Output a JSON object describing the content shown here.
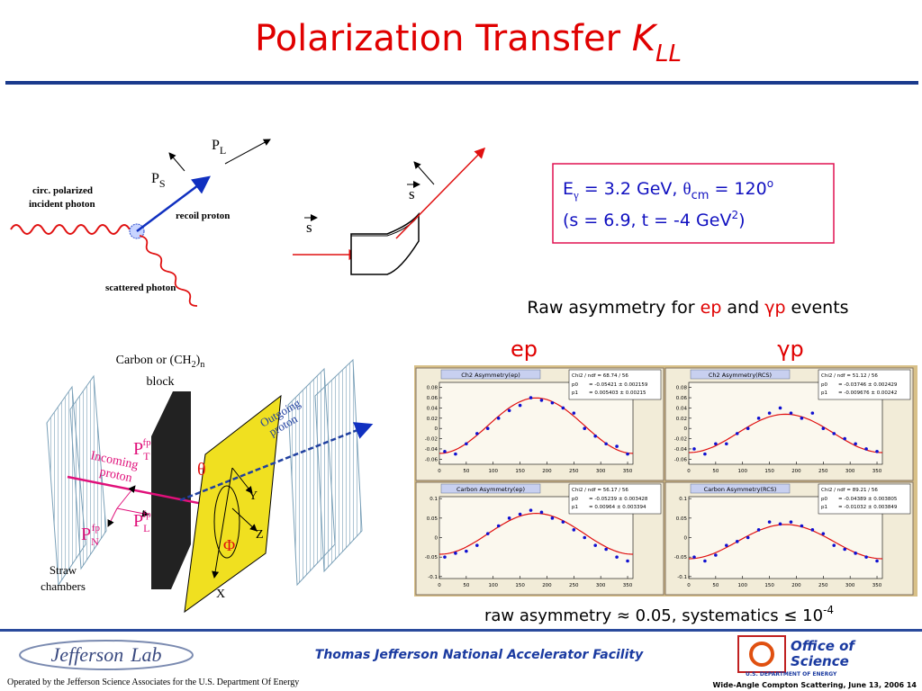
{
  "title": {
    "main": "Polarization Transfer ",
    "symbol": "K",
    "subscript": "LL"
  },
  "compton_diagram": {
    "incident": [
      "circ. polarized",
      "incident photon"
    ],
    "recoil": "recoil proton",
    "scattered": "scattered photon",
    "ps": {
      "symbol": "P",
      "subscript": "S"
    },
    "pl": {
      "symbol": "P",
      "subscript": "L"
    }
  },
  "spin_diagram": {
    "incoming": "s",
    "outgoing": "s"
  },
  "kinematics": {
    "line1": [
      "E",
      "γ",
      " = 3.2 GeV, ",
      "θ",
      "cm",
      " = 120",
      "o"
    ],
    "line2": [
      "(s = 6.9, t = -4 GeV",
      "2",
      ")"
    ]
  },
  "detector_diagram": {
    "block": [
      "Carbon or (CH",
      "2",
      ")",
      "n",
      "block"
    ],
    "incoming": [
      "Incoming",
      "proton"
    ],
    "outgoing": [
      "Outgoing",
      "proton"
    ],
    "pt": {
      "symbol": "P",
      "sub": "T",
      "sup": "fp"
    },
    "pl": {
      "symbol": "P",
      "sub": "L",
      "sup": "fp"
    },
    "pn": {
      "symbol": "P",
      "sub": "N",
      "sup": "fp"
    },
    "theta": "θ",
    "phi": "Φ",
    "axes": [
      "X",
      "Y",
      "Z"
    ],
    "chambers": [
      "Straw",
      "chambers"
    ]
  },
  "asymmetry": {
    "heading": [
      "Raw asymmetry for ",
      "ep",
      " and ",
      "γp",
      " events"
    ],
    "labels": [
      "ep",
      "γp"
    ],
    "plots": [
      {
        "title": "Ch2 Asymmetry(ep)",
        "chi2": "Chi2 / ndf = 68.74 / 56",
        "params": [
          {
            "name": "p0",
            "value": -0.05421,
            "label": "= -0.05421 ± 0.002159"
          },
          {
            "name": "p1",
            "value": 0.005403,
            "label": "= 0.005403 ± 0.00215"
          }
        ],
        "xlim": [
          0,
          360
        ],
        "xticks": [
          0,
          50,
          100,
          150,
          200,
          250,
          300,
          350
        ],
        "ylim": [
          -0.07,
          0.09
        ],
        "yticks": [
          -0.06,
          -0.04,
          -0.02,
          0,
          0.02,
          0.04,
          0.06,
          0.08
        ],
        "x": [
          10,
          30,
          50,
          70,
          90,
          110,
          130,
          150,
          170,
          190,
          210,
          230,
          250,
          270,
          290,
          310,
          330,
          350
        ],
        "values": [
          -0.045,
          -0.05,
          -0.03,
          -0.01,
          0.0,
          0.02,
          0.035,
          0.045,
          0.06,
          0.055,
          0.05,
          0.04,
          0.03,
          0.0,
          -0.015,
          -0.03,
          -0.035,
          -0.05
        ]
      },
      {
        "title": "Ch2 Asymmetry(RCS)",
        "chi2": "Chi2 / ndf = 51.12 / 56",
        "params": [
          {
            "name": "p0",
            "value": -0.03746,
            "label": "= -0.03746 ± 0.002429"
          },
          {
            "name": "p1",
            "value": -0.009676,
            "label": "= -0.009676 ± 0.00242"
          }
        ],
        "xlim": [
          0,
          360
        ],
        "xticks": [
          0,
          50,
          100,
          150,
          200,
          250,
          300,
          350
        ],
        "ylim": [
          -0.07,
          0.09
        ],
        "yticks": [
          -0.06,
          -0.04,
          -0.02,
          0,
          0.02,
          0.04,
          0.06,
          0.08
        ],
        "x": [
          10,
          30,
          50,
          70,
          90,
          110,
          130,
          150,
          170,
          190,
          210,
          230,
          250,
          270,
          290,
          310,
          330,
          350
        ],
        "values": [
          -0.04,
          -0.05,
          -0.03,
          -0.03,
          -0.01,
          0.0,
          0.02,
          0.03,
          0.04,
          0.03,
          0.02,
          0.03,
          0.0,
          -0.01,
          -0.02,
          -0.03,
          -0.04,
          -0.045
        ]
      },
      {
        "title": "Carbon Asymmetry(ep)",
        "chi2": "Chi2 / ndf = 56.17 / 56",
        "params": [
          {
            "name": "p0",
            "value": -0.05239,
            "label": "= -0.05239 ± 0.003428"
          },
          {
            "name": "p1",
            "value": 0.00964,
            "label": "= 0.00964 ± 0.003394"
          }
        ],
        "xlim": [
          0,
          360
        ],
        "xticks": [
          0,
          50,
          100,
          150,
          200,
          250,
          300,
          350
        ],
        "ylim": [
          -0.105,
          0.105
        ],
        "yticks": [
          -0.1,
          -0.05,
          0,
          0.05,
          0.1
        ],
        "x": [
          10,
          30,
          50,
          70,
          90,
          110,
          130,
          150,
          170,
          190,
          210,
          230,
          250,
          270,
          290,
          310,
          330,
          350
        ],
        "values": [
          -0.05,
          -0.04,
          -0.035,
          -0.02,
          0.01,
          0.03,
          0.05,
          0.06,
          0.07,
          0.065,
          0.05,
          0.04,
          0.02,
          0.0,
          -0.02,
          -0.03,
          -0.05,
          -0.06
        ]
      },
      {
        "title": "Carbon Asymmetry(RCS)",
        "chi2": "Chi2 / ndf = 89.21 / 56",
        "params": [
          {
            "name": "p0",
            "value": -0.04389,
            "label": "= -0.04389 ± 0.003805"
          },
          {
            "name": "p1",
            "value": -0.01032,
            "label": "= -0.01032 ± 0.003849"
          }
        ],
        "xlim": [
          0,
          360
        ],
        "xticks": [
          0,
          50,
          100,
          150,
          200,
          250,
          300,
          350
        ],
        "ylim": [
          -0.105,
          0.105
        ],
        "yticks": [
          -0.1,
          -0.05,
          0,
          0.05,
          0.1
        ],
        "x": [
          10,
          30,
          50,
          70,
          90,
          110,
          130,
          150,
          170,
          190,
          210,
          230,
          250,
          270,
          290,
          310,
          330,
          350
        ],
        "values": [
          -0.05,
          -0.06,
          -0.045,
          -0.02,
          -0.01,
          0.0,
          0.02,
          0.04,
          0.035,
          0.04,
          0.03,
          0.02,
          0.01,
          -0.02,
          -0.03,
          -0.04,
          -0.05,
          -0.06
        ]
      }
    ]
  },
  "summary": [
    "raw asymmetry ≈ 0.05, systematics ≤ 10",
    "-4"
  ],
  "footer": {
    "lab_logo": [
      "Jefferson",
      "Lab"
    ],
    "facility": "Thomas Jefferson National Accelerator Facility",
    "doe_logo": [
      "Office of",
      "Science",
      "U.S. DEPARTMENT OF ENERGY"
    ],
    "operator": "Operated by the Jefferson Science Associates for the U.S. Department Of Energy",
    "slide_info": "Wide-Angle Compton Scattering, June 13, 2006  14"
  }
}
